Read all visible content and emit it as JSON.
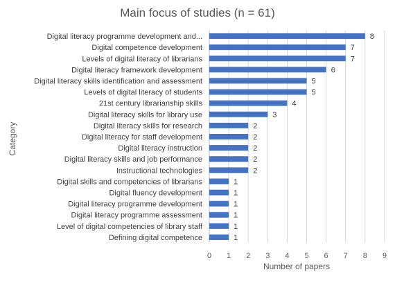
{
  "chart_data": {
    "type": "bar",
    "orientation": "horizontal",
    "title": "Main focus of studies (n = 61)",
    "xlabel": "Number of papers",
    "ylabel": "Category",
    "xlim": [
      0,
      9
    ],
    "xticks": [
      0,
      1,
      2,
      3,
      4,
      5,
      6,
      7,
      8,
      9
    ],
    "grid": true,
    "bar_color": "#4472C4",
    "categories": [
      "Digital literacy programme development and...",
      "Digital competence development",
      "Levels of digital literacy of librarians",
      "Digital literacy framework development",
      "Digital literacy skills identification and assessment",
      "Levels of digital literacy of students",
      "21st century librarianship skills",
      "Digital literacy skills for library use",
      "Digital literacy skills for research",
      "Digital literacy for staff development",
      "Digital literacy instruction",
      "Digital literacy skills and job performance",
      "Instructional technologies",
      "Digital skills and competencies of librarians",
      "Digital fluency development",
      "Digital literacy programme development",
      "Digital literacy programme assessment",
      "Level of digital competencies of library staff",
      "Defining digital competence"
    ],
    "values": [
      8,
      7,
      7,
      6,
      5,
      5,
      4,
      3,
      2,
      2,
      2,
      2,
      2,
      1,
      1,
      1,
      1,
      1,
      1
    ]
  }
}
